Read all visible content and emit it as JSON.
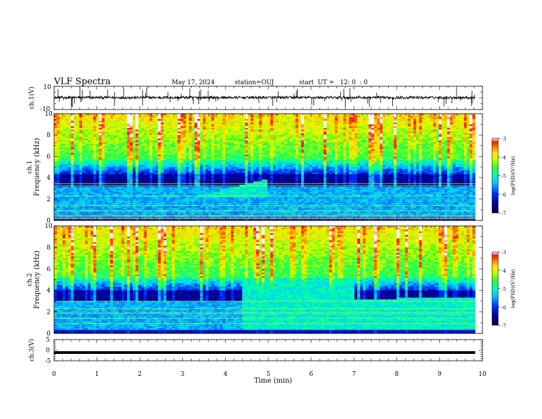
{
  "header": {
    "title": "VLF Spectra",
    "date": "May 17, 2024",
    "station": "station=OUJ",
    "start": "start  UT =   12: 0  : 0"
  },
  "chart_data": {
    "type": "heatmap",
    "xlabel": "Time (min)",
    "xlim": [
      0,
      10
    ],
    "x_ticks": [
      "0",
      "1",
      "2",
      "3",
      "4",
      "5",
      "6",
      "7",
      "8",
      "9",
      "10"
    ],
    "data_end_min": 9.83,
    "panels": [
      {
        "id": "ch1-waveform",
        "type": "line",
        "ylabel": "ch.1(V)",
        "ylim": [
          -10,
          10
        ],
        "y_ticks": [
          "10",
          "-10"
        ],
        "baseline": 0.3
      },
      {
        "id": "ch1-spectrogram",
        "type": "heatmap",
        "ylabel": "ch.1\nFrequency (kHz)",
        "ylim": [
          0,
          10
        ],
        "y_ticks": [
          "0",
          "2",
          "4",
          "6",
          "8",
          "10"
        ],
        "features": [
          {
            "band_khz": [
              0,
              5.6
            ],
            "level": "low",
            "note": "background"
          },
          {
            "band_khz": [
              5.6,
              10
            ],
            "level": "high",
            "note": "sferics"
          },
          {
            "band_khz": [
              0.2,
              3.2
            ],
            "level": "medium",
            "time_min": [
              0,
              9.83
            ]
          },
          {
            "band_khz": [
              2.2,
              3.9
            ],
            "level": "medium-high",
            "time_min": [
              3.3,
              5.0
            ],
            "note": "rising chorus"
          }
        ],
        "lines_khz": [
          0.15,
          0.45,
          0.9,
          1.4,
          2.3,
          3.25,
          3.45
        ]
      },
      {
        "id": "ch2-spectrogram",
        "type": "heatmap",
        "ylabel": "ch.2\nFrequency (kHz)",
        "ylim": [
          0,
          10
        ],
        "y_ticks": [
          "0",
          "2",
          "4",
          "6",
          "8",
          "10"
        ],
        "features": [
          {
            "band_khz": [
              0,
              5.2
            ],
            "level": "low",
            "note": "background"
          },
          {
            "band_khz": [
              5.2,
              10
            ],
            "level": "high",
            "note": "sferics"
          },
          {
            "band_khz": [
              0.3,
              3.0
            ],
            "level": "medium",
            "time_min": [
              0,
              4.4
            ]
          },
          {
            "band_khz": [
              0.3,
              5.0
            ],
            "level": "medium-high",
            "time_min": [
              4.4,
              7.0
            ]
          },
          {
            "band_khz": [
              0.3,
              3.2
            ],
            "level": "medium-high",
            "time_min": [
              7.0,
              8.0
            ]
          },
          {
            "band_khz": [
              0.3,
              3.3
            ],
            "level": "medium-high",
            "time_min": [
              8.0,
              9.83
            ]
          }
        ],
        "lines_khz": [
          0.9,
          1.4,
          1.9,
          2.3,
          3.0
        ]
      },
      {
        "id": "ch3-waveform",
        "type": "line",
        "ylabel": "ch.3(V)",
        "ylim": [
          -5,
          5
        ],
        "y_ticks": [
          "5",
          "0",
          "-5"
        ],
        "baseline": -1.1
      }
    ],
    "colorbar": {
      "label": "log(PSD)(V²/Hz)",
      "range": [
        -7,
        -3
      ],
      "ticks": [
        "-3",
        "-4",
        "-5",
        "-6",
        "-7"
      ],
      "colors": [
        "#ffffff",
        "#ff0000",
        "#ff9900",
        "#ffff00",
        "#00ff66",
        "#00ffff",
        "#0066ff",
        "#000099",
        "#000033"
      ]
    }
  }
}
